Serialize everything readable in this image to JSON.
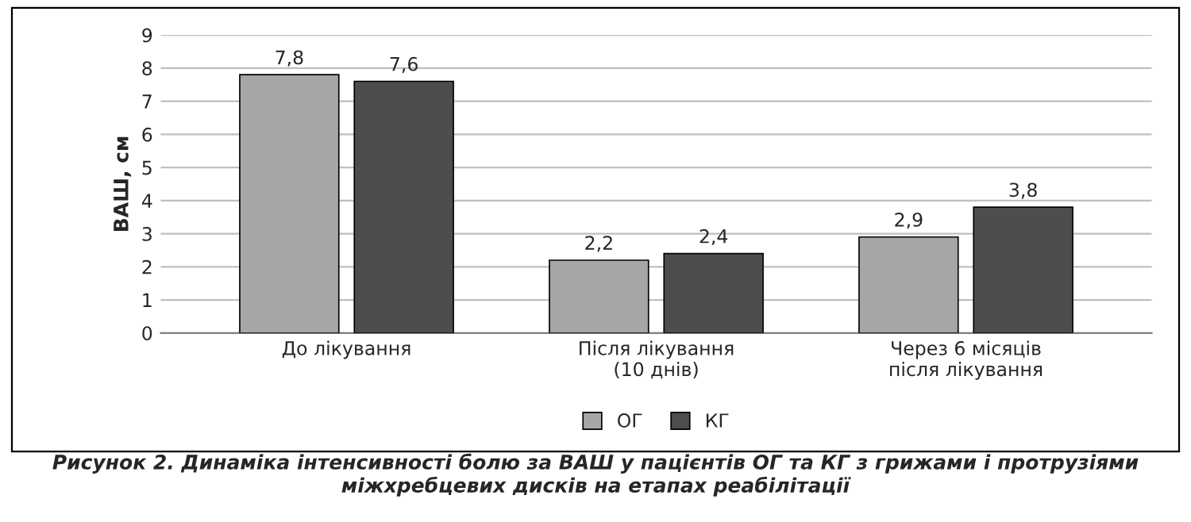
{
  "chart_data": {
    "type": "bar",
    "categories": [
      "До лікування",
      "Після лікування\n(10 днів)",
      "Через 6 місяців\nпісля лікування"
    ],
    "series": [
      {
        "name": "ОГ",
        "color": "#a6a6a6",
        "values": [
          7.8,
          2.2,
          2.9
        ],
        "value_labels": [
          "7,8",
          "2,2",
          "2,9"
        ]
      },
      {
        "name": "КГ",
        "color": "#4d4d4d",
        "values": [
          7.6,
          2.4,
          3.8
        ],
        "value_labels": [
          "7,6",
          "2,4",
          "3,8"
        ]
      }
    ],
    "ylabel": "ВАШ, см",
    "ylim": [
      0,
      9
    ],
    "yticks": [
      0,
      1,
      2,
      3,
      4,
      5,
      6,
      7,
      8,
      9
    ],
    "grid": "y",
    "legend": "bottom",
    "annotations": [
      "Рисунок 2. Динаміка інтенсивності болю за ВАШ у пацієнтів ОГ та КГ з грижами і протрузіями міжхребцевих дисків на етапах реабілітації"
    ]
  }
}
